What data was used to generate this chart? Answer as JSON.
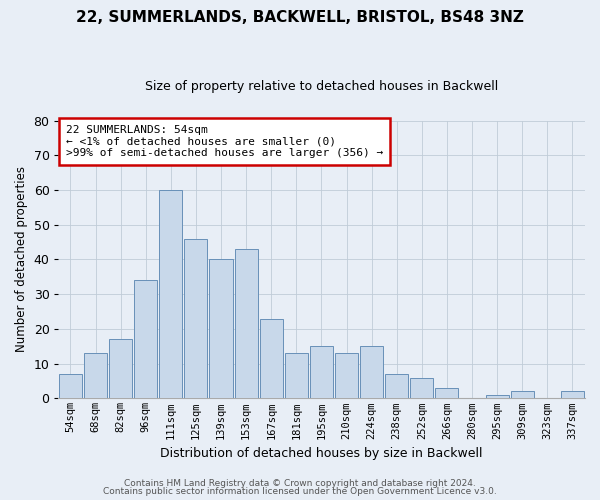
{
  "title1": "22, SUMMERLANDS, BACKWELL, BRISTOL, BS48 3NZ",
  "title2": "Size of property relative to detached houses in Backwell",
  "xlabel": "Distribution of detached houses by size in Backwell",
  "ylabel": "Number of detached properties",
  "categories": [
    "54sqm",
    "68sqm",
    "82sqm",
    "96sqm",
    "111sqm",
    "125sqm",
    "139sqm",
    "153sqm",
    "167sqm",
    "181sqm",
    "195sqm",
    "210sqm",
    "224sqm",
    "238sqm",
    "252sqm",
    "266sqm",
    "280sqm",
    "295sqm",
    "309sqm",
    "323sqm",
    "337sqm"
  ],
  "values": [
    7,
    13,
    17,
    34,
    60,
    46,
    40,
    43,
    23,
    13,
    15,
    13,
    15,
    7,
    6,
    3,
    0,
    1,
    2,
    0,
    2
  ],
  "bar_color": "#c8d8ea",
  "bar_edge_color": "#6890b8",
  "annotation_line1": "22 SUMMERLANDS: 54sqm",
  "annotation_line2": "← <1% of detached houses are smaller (0)",
  "annotation_line3": ">99% of semi-detached houses are larger (356) →",
  "annotation_box_facecolor": "#ffffff",
  "annotation_box_edgecolor": "#cc0000",
  "ylim": [
    0,
    80
  ],
  "yticks": [
    0,
    10,
    20,
    30,
    40,
    50,
    60,
    70,
    80
  ],
  "footer1": "Contains HM Land Registry data © Crown copyright and database right 2024.",
  "footer2": "Contains public sector information licensed under the Open Government Licence v3.0.",
  "bg_color": "#e8eef6"
}
